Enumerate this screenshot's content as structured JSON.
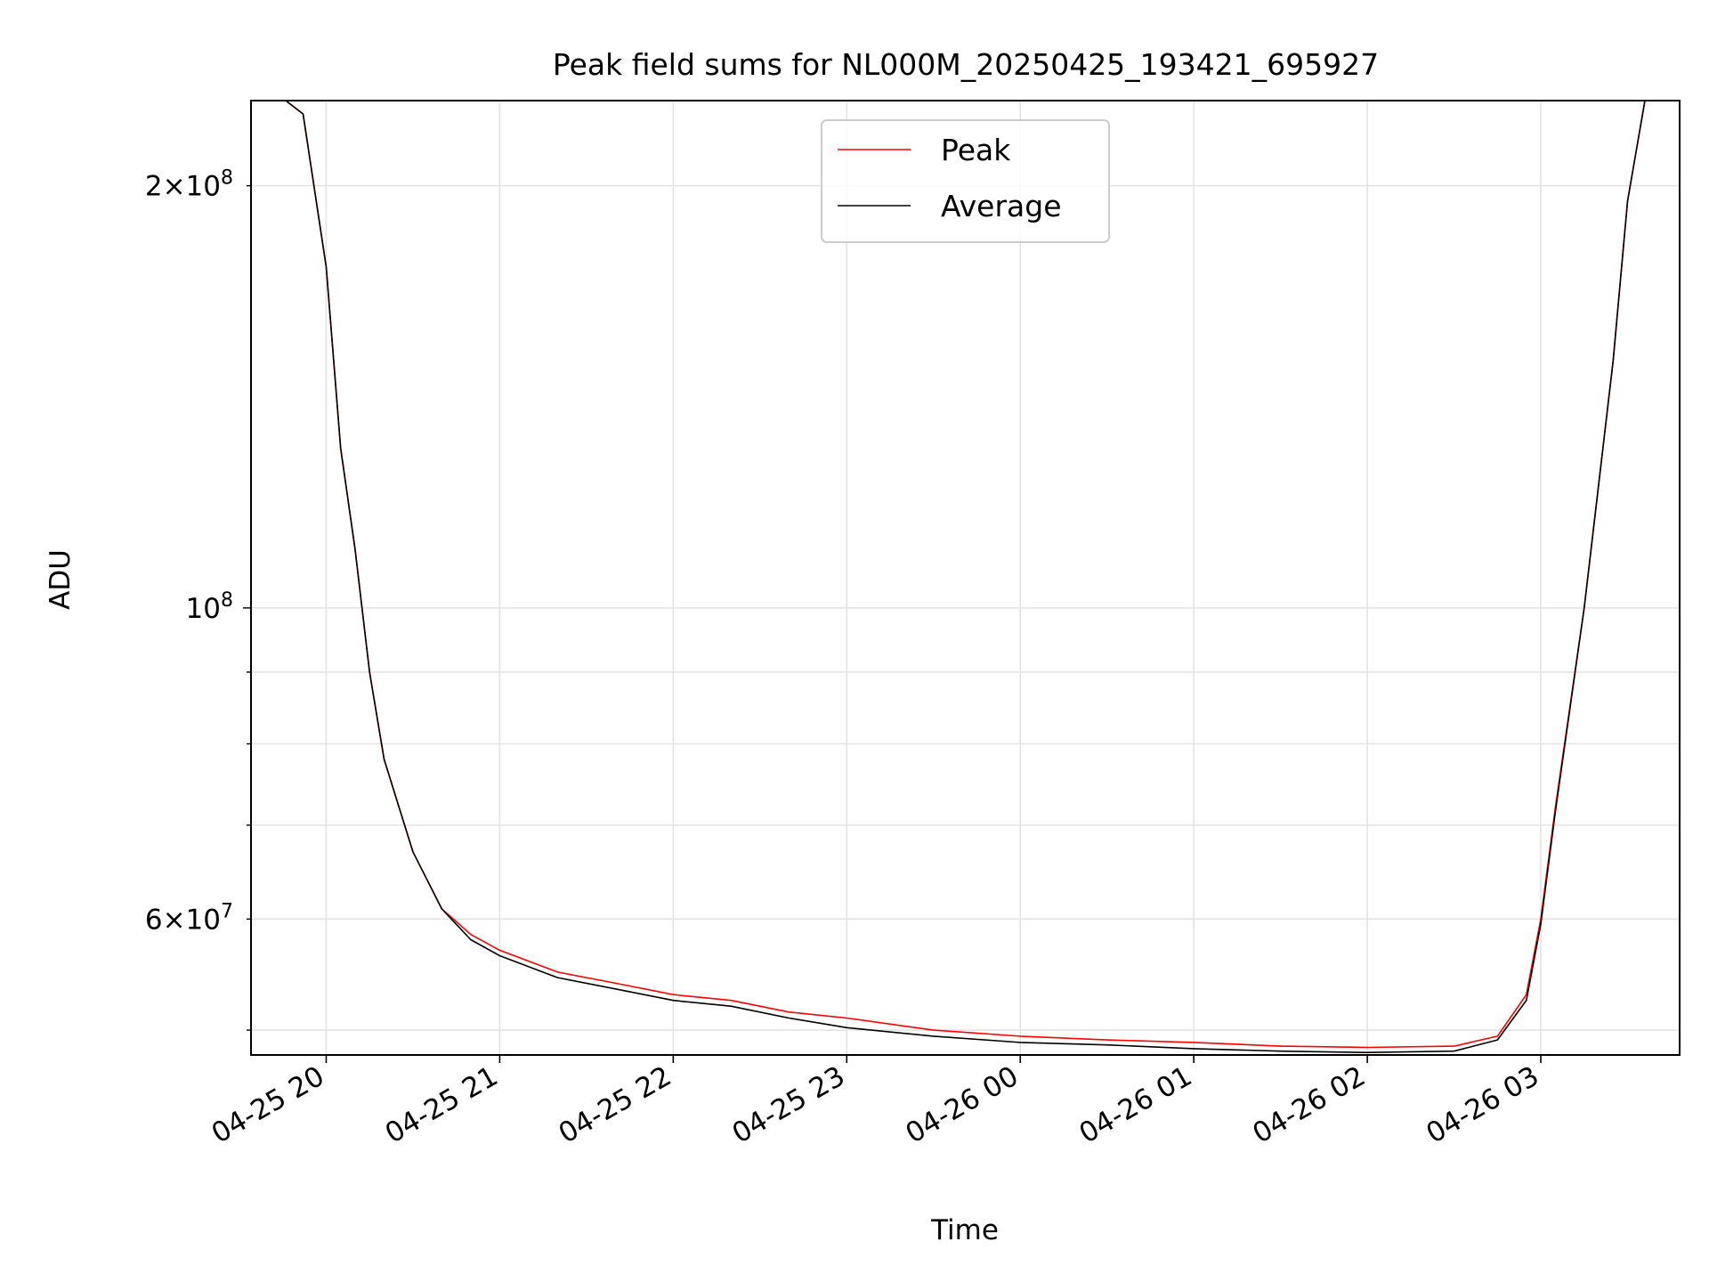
{
  "chart_data": {
    "type": "line",
    "title": "Peak field sums for NL000M_20250425_193421_695927",
    "xlabel": "Time",
    "ylabel": "ADU",
    "x_tick_labels": [
      "04-25 20",
      "04-25 21",
      "04-25 22",
      "04-25 23",
      "04-26 00",
      "04-26 01",
      "04-26 02",
      "04-26 03"
    ],
    "x_ticks": [
      "2025-04-25 20:00",
      "2025-04-25 21:00",
      "2025-04-25 22:00",
      "2025-04-25 23:00",
      "2025-04-26 00:00",
      "2025-04-26 01:00",
      "2025-04-26 02:00",
      "2025-04-26 03:00"
    ],
    "xlim": [
      "2025-04-25 19:34",
      "2025-04-26 03:48"
    ],
    "y_scale": "log",
    "ylim": [
      48000000,
      230000000
    ],
    "y_major_ticks": [
      100000000
    ],
    "y_major_tick_labels": [
      "10^8"
    ],
    "y_labeled_minor_ticks": [
      60000000,
      200000000
    ],
    "y_labeled_minor_tick_labels": [
      "6×10^7",
      "2×10^8"
    ],
    "y_minor_ticks": [
      50000000,
      60000000,
      70000000,
      80000000,
      90000000,
      200000000
    ],
    "grid": true,
    "legend_position": "top-center",
    "series": [
      {
        "name": "Peak",
        "color": "#ff0000",
        "x": [
          "2025-04-25 19:35",
          "2025-04-25 19:46",
          "2025-04-25 19:52",
          "2025-04-25 20:00",
          "2025-04-25 20:05",
          "2025-04-25 20:10",
          "2025-04-25 20:15",
          "2025-04-25 20:20",
          "2025-04-25 20:30",
          "2025-04-25 20:40",
          "2025-04-25 20:50",
          "2025-04-25 21:00",
          "2025-04-25 21:20",
          "2025-04-25 21:40",
          "2025-04-25 22:00",
          "2025-04-25 22:20",
          "2025-04-25 22:40",
          "2025-04-25 23:00",
          "2025-04-25 23:30",
          "2025-04-26 00:00",
          "2025-04-26 00:30",
          "2025-04-26 01:00",
          "2025-04-26 01:30",
          "2025-04-26 02:00",
          "2025-04-26 02:30",
          "2025-04-26 02:45",
          "2025-04-26 02:55",
          "2025-04-26 03:00",
          "2025-04-26 03:05",
          "2025-04-26 03:15",
          "2025-04-26 03:25",
          "2025-04-26 03:30",
          "2025-04-26 03:36",
          "2025-04-26 03:47"
        ],
        "y": [
          230000000,
          230000000,
          225000000,
          175000000,
          130000000,
          110000000,
          90000000,
          78000000,
          67000000,
          61000000,
          58500000,
          57000000,
          55000000,
          54000000,
          53000000,
          52500000,
          51500000,
          51000000,
          50000000,
          49500000,
          49200000,
          49000000,
          48700000,
          48600000,
          48700000,
          49500000,
          53000000,
          60000000,
          72000000,
          100000000,
          150000000,
          195000000,
          230000000,
          230000000
        ]
      },
      {
        "name": "Average",
        "color": "#000000",
        "x": [
          "2025-04-25 19:35",
          "2025-04-25 19:46",
          "2025-04-25 19:52",
          "2025-04-25 20:00",
          "2025-04-25 20:05",
          "2025-04-25 20:10",
          "2025-04-25 20:15",
          "2025-04-25 20:20",
          "2025-04-25 20:30",
          "2025-04-25 20:40",
          "2025-04-25 20:50",
          "2025-04-25 21:00",
          "2025-04-25 21:20",
          "2025-04-25 21:40",
          "2025-04-25 22:00",
          "2025-04-25 22:20",
          "2025-04-25 22:40",
          "2025-04-25 23:00",
          "2025-04-25 23:30",
          "2025-04-26 00:00",
          "2025-04-26 00:30",
          "2025-04-26 01:00",
          "2025-04-26 01:30",
          "2025-04-26 02:00",
          "2025-04-26 02:30",
          "2025-04-26 02:45",
          "2025-04-26 02:55",
          "2025-04-26 03:00",
          "2025-04-26 03:05",
          "2025-04-26 03:15",
          "2025-04-26 03:25",
          "2025-04-26 03:30",
          "2025-04-26 03:36",
          "2025-04-26 03:47"
        ],
        "y": [
          230000000,
          230000000,
          225000000,
          175000000,
          130000000,
          110000000,
          90000000,
          78000000,
          67000000,
          61000000,
          58000000,
          56500000,
          54500000,
          53500000,
          52500000,
          52000000,
          51000000,
          50200000,
          49500000,
          49000000,
          48800000,
          48500000,
          48300000,
          48200000,
          48300000,
          49200000,
          52500000,
          59500000,
          71500000,
          100000000,
          150000000,
          195000000,
          230000000,
          230000000
        ]
      }
    ]
  }
}
